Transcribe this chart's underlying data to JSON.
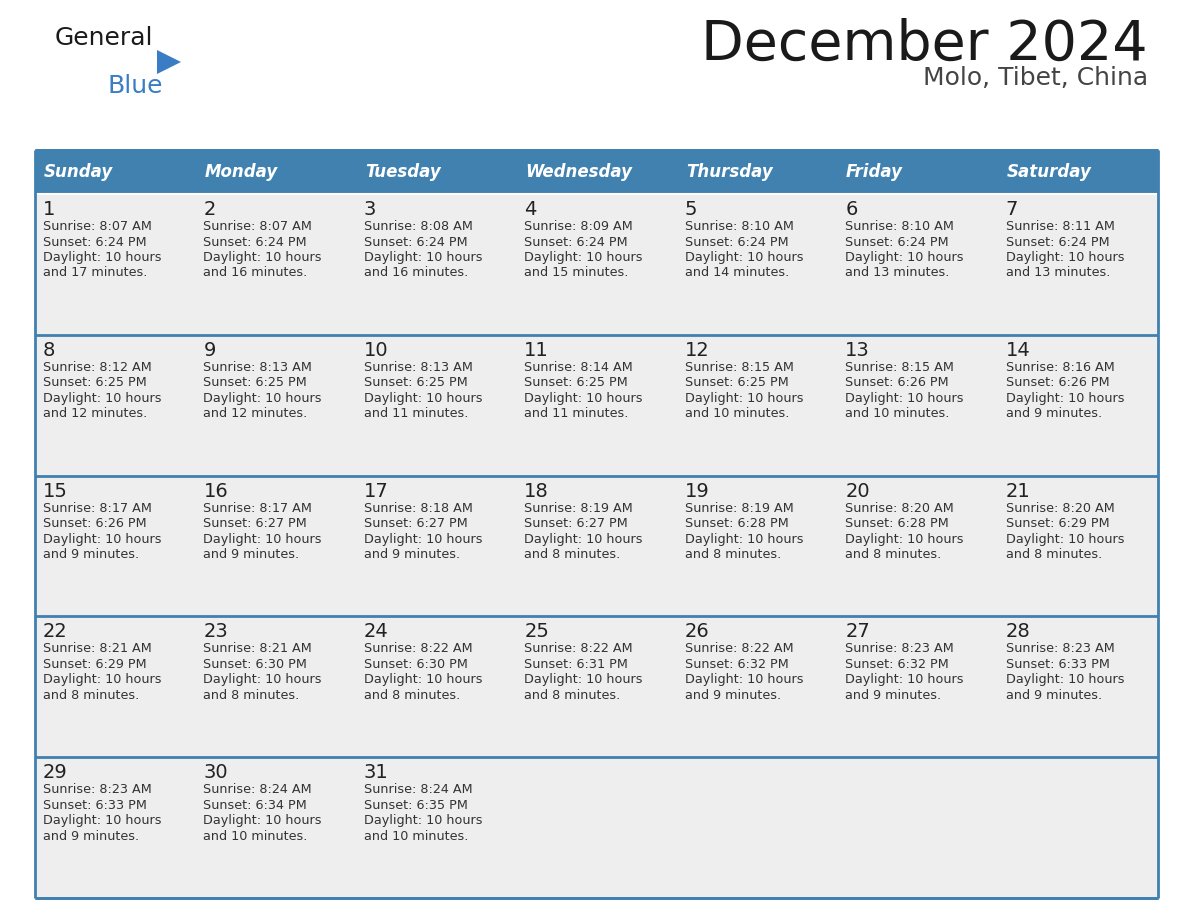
{
  "title": "December 2024",
  "subtitle": "Molo, Tibet, China",
  "header_bg_color": "#4081B0",
  "header_text_color": "#FFFFFF",
  "cell_bg_color": "#EEEEEE",
  "row_sep_color": "#4081B0",
  "border_color": "#4081B0",
  "day_headers": [
    "Sunday",
    "Monday",
    "Tuesday",
    "Wednesday",
    "Thursday",
    "Friday",
    "Saturday"
  ],
  "title_color": "#1a1a1a",
  "subtitle_color": "#444444",
  "day_num_color": "#222222",
  "info_color": "#333333",
  "logo_general_color": "#1a1a1a",
  "logo_blue_color": "#3B7DC4",
  "logo_triangle_color": "#3B7DC4",
  "calendar": [
    [
      {
        "day": 1,
        "sunrise": "8:07 AM",
        "sunset": "6:24 PM",
        "dl1": "Daylight: 10 hours",
        "dl2": "and 17 minutes."
      },
      {
        "day": 2,
        "sunrise": "8:07 AM",
        "sunset": "6:24 PM",
        "dl1": "Daylight: 10 hours",
        "dl2": "and 16 minutes."
      },
      {
        "day": 3,
        "sunrise": "8:08 AM",
        "sunset": "6:24 PM",
        "dl1": "Daylight: 10 hours",
        "dl2": "and 16 minutes."
      },
      {
        "day": 4,
        "sunrise": "8:09 AM",
        "sunset": "6:24 PM",
        "dl1": "Daylight: 10 hours",
        "dl2": "and 15 minutes."
      },
      {
        "day": 5,
        "sunrise": "8:10 AM",
        "sunset": "6:24 PM",
        "dl1": "Daylight: 10 hours",
        "dl2": "and 14 minutes."
      },
      {
        "day": 6,
        "sunrise": "8:10 AM",
        "sunset": "6:24 PM",
        "dl1": "Daylight: 10 hours",
        "dl2": "and 13 minutes."
      },
      {
        "day": 7,
        "sunrise": "8:11 AM",
        "sunset": "6:24 PM",
        "dl1": "Daylight: 10 hours",
        "dl2": "and 13 minutes."
      }
    ],
    [
      {
        "day": 8,
        "sunrise": "8:12 AM",
        "sunset": "6:25 PM",
        "dl1": "Daylight: 10 hours",
        "dl2": "and 12 minutes."
      },
      {
        "day": 9,
        "sunrise": "8:13 AM",
        "sunset": "6:25 PM",
        "dl1": "Daylight: 10 hours",
        "dl2": "and 12 minutes."
      },
      {
        "day": 10,
        "sunrise": "8:13 AM",
        "sunset": "6:25 PM",
        "dl1": "Daylight: 10 hours",
        "dl2": "and 11 minutes."
      },
      {
        "day": 11,
        "sunrise": "8:14 AM",
        "sunset": "6:25 PM",
        "dl1": "Daylight: 10 hours",
        "dl2": "and 11 minutes."
      },
      {
        "day": 12,
        "sunrise": "8:15 AM",
        "sunset": "6:25 PM",
        "dl1": "Daylight: 10 hours",
        "dl2": "and 10 minutes."
      },
      {
        "day": 13,
        "sunrise": "8:15 AM",
        "sunset": "6:26 PM",
        "dl1": "Daylight: 10 hours",
        "dl2": "and 10 minutes."
      },
      {
        "day": 14,
        "sunrise": "8:16 AM",
        "sunset": "6:26 PM",
        "dl1": "Daylight: 10 hours",
        "dl2": "and 9 minutes."
      }
    ],
    [
      {
        "day": 15,
        "sunrise": "8:17 AM",
        "sunset": "6:26 PM",
        "dl1": "Daylight: 10 hours",
        "dl2": "and 9 minutes."
      },
      {
        "day": 16,
        "sunrise": "8:17 AM",
        "sunset": "6:27 PM",
        "dl1": "Daylight: 10 hours",
        "dl2": "and 9 minutes."
      },
      {
        "day": 17,
        "sunrise": "8:18 AM",
        "sunset": "6:27 PM",
        "dl1": "Daylight: 10 hours",
        "dl2": "and 9 minutes."
      },
      {
        "day": 18,
        "sunrise": "8:19 AM",
        "sunset": "6:27 PM",
        "dl1": "Daylight: 10 hours",
        "dl2": "and 8 minutes."
      },
      {
        "day": 19,
        "sunrise": "8:19 AM",
        "sunset": "6:28 PM",
        "dl1": "Daylight: 10 hours",
        "dl2": "and 8 minutes."
      },
      {
        "day": 20,
        "sunrise": "8:20 AM",
        "sunset": "6:28 PM",
        "dl1": "Daylight: 10 hours",
        "dl2": "and 8 minutes."
      },
      {
        "day": 21,
        "sunrise": "8:20 AM",
        "sunset": "6:29 PM",
        "dl1": "Daylight: 10 hours",
        "dl2": "and 8 minutes."
      }
    ],
    [
      {
        "day": 22,
        "sunrise": "8:21 AM",
        "sunset": "6:29 PM",
        "dl1": "Daylight: 10 hours",
        "dl2": "and 8 minutes."
      },
      {
        "day": 23,
        "sunrise": "8:21 AM",
        "sunset": "6:30 PM",
        "dl1": "Daylight: 10 hours",
        "dl2": "and 8 minutes."
      },
      {
        "day": 24,
        "sunrise": "8:22 AM",
        "sunset": "6:30 PM",
        "dl1": "Daylight: 10 hours",
        "dl2": "and 8 minutes."
      },
      {
        "day": 25,
        "sunrise": "8:22 AM",
        "sunset": "6:31 PM",
        "dl1": "Daylight: 10 hours",
        "dl2": "and 8 minutes."
      },
      {
        "day": 26,
        "sunrise": "8:22 AM",
        "sunset": "6:32 PM",
        "dl1": "Daylight: 10 hours",
        "dl2": "and 9 minutes."
      },
      {
        "day": 27,
        "sunrise": "8:23 AM",
        "sunset": "6:32 PM",
        "dl1": "Daylight: 10 hours",
        "dl2": "and 9 minutes."
      },
      {
        "day": 28,
        "sunrise": "8:23 AM",
        "sunset": "6:33 PM",
        "dl1": "Daylight: 10 hours",
        "dl2": "and 9 minutes."
      }
    ],
    [
      {
        "day": 29,
        "sunrise": "8:23 AM",
        "sunset": "6:33 PM",
        "dl1": "Daylight: 10 hours",
        "dl2": "and 9 minutes."
      },
      {
        "day": 30,
        "sunrise": "8:24 AM",
        "sunset": "6:34 PM",
        "dl1": "Daylight: 10 hours",
        "dl2": "and 10 minutes."
      },
      {
        "day": 31,
        "sunrise": "8:24 AM",
        "sunset": "6:35 PM",
        "dl1": "Daylight: 10 hours",
        "dl2": "and 10 minutes."
      },
      null,
      null,
      null,
      null
    ]
  ]
}
